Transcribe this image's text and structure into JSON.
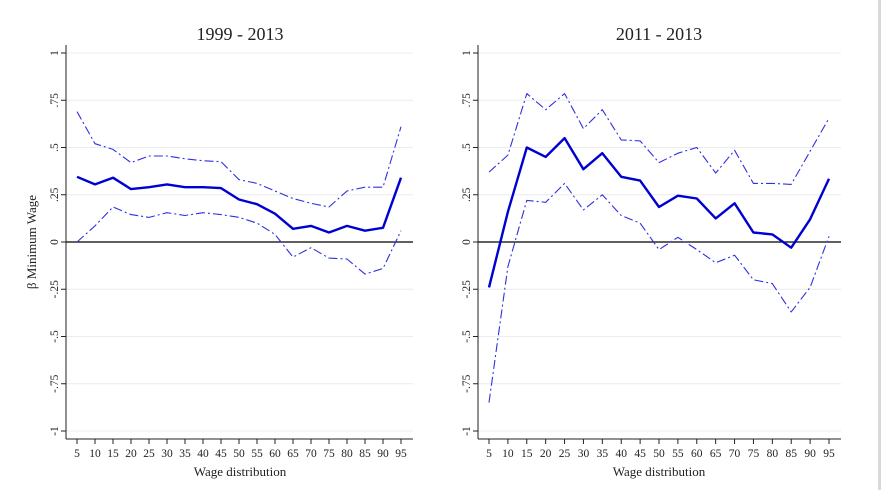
{
  "chart_data": [
    {
      "type": "line",
      "title": "1999 - 2013",
      "xlabel": "Wage distribution",
      "ylabel": "β Minimum Wage",
      "x": [
        5,
        10,
        15,
        20,
        25,
        30,
        35,
        40,
        45,
        50,
        55,
        60,
        65,
        70,
        75,
        80,
        85,
        90,
        95
      ],
      "ylim": [
        -1,
        1
      ],
      "yticks": [
        "1",
        ".75",
        ".5",
        ".25",
        "0",
        "-.25",
        "-.5",
        "-.75",
        "-1"
      ],
      "ytick_values": [
        1,
        0.75,
        0.5,
        0.25,
        0,
        -0.25,
        -0.5,
        -0.75,
        -1
      ],
      "grid": true,
      "zero_line": true,
      "series": [
        {
          "role": "estimate",
          "style": "solid",
          "color": "#0000d0",
          "values": [
            0.345,
            0.305,
            0.34,
            0.28,
            0.29,
            0.305,
            0.29,
            0.29,
            0.285,
            0.225,
            0.2,
            0.15,
            0.07,
            0.085,
            0.05,
            0.085,
            0.06,
            0.075,
            0.34
          ]
        },
        {
          "role": "upper",
          "style": "dash-dot",
          "color": "#3030e0",
          "values": [
            0.69,
            0.52,
            0.49,
            0.42,
            0.455,
            0.455,
            0.44,
            0.43,
            0.425,
            0.33,
            0.31,
            0.27,
            0.23,
            0.205,
            0.185,
            0.27,
            0.29,
            0.29,
            0.61
          ]
        },
        {
          "role": "lower",
          "style": "dash-dot",
          "color": "#3030e0",
          "values": [
            0.0,
            0.085,
            0.185,
            0.145,
            0.13,
            0.155,
            0.14,
            0.155,
            0.145,
            0.13,
            0.1,
            0.04,
            -0.08,
            -0.03,
            -0.085,
            -0.09,
            -0.17,
            -0.14,
            0.06
          ]
        }
      ]
    },
    {
      "type": "line",
      "title": "2011 - 2013",
      "xlabel": "Wage distribution",
      "ylabel": "",
      "x": [
        5,
        10,
        15,
        20,
        25,
        30,
        35,
        40,
        45,
        50,
        55,
        60,
        65,
        70,
        75,
        80,
        85,
        90,
        95
      ],
      "ylim": [
        -1,
        1
      ],
      "yticks": [
        "1",
        ".75",
        ".5",
        ".25",
        "0",
        "-.25",
        "-.5",
        "-.75",
        "-1"
      ],
      "ytick_values": [
        1,
        0.75,
        0.5,
        0.25,
        0,
        -0.25,
        -0.5,
        -0.75,
        -1
      ],
      "grid": true,
      "zero_line": true,
      "series": [
        {
          "role": "estimate",
          "style": "solid",
          "color": "#0000d0",
          "values": [
            -0.24,
            0.16,
            0.5,
            0.45,
            0.55,
            0.385,
            0.47,
            0.345,
            0.325,
            0.185,
            0.245,
            0.23,
            0.125,
            0.205,
            0.05,
            0.04,
            -0.03,
            0.12,
            0.335
          ]
        },
        {
          "role": "upper",
          "style": "dash-dot",
          "color": "#3030e0",
          "values": [
            0.37,
            0.46,
            0.785,
            0.7,
            0.785,
            0.6,
            0.7,
            0.54,
            0.535,
            0.42,
            0.47,
            0.5,
            0.365,
            0.485,
            0.31,
            0.31,
            0.305,
            0.48,
            0.655
          ]
        },
        {
          "role": "lower",
          "style": "dash-dot",
          "color": "#3030e0",
          "values": [
            -0.85,
            -0.13,
            0.22,
            0.21,
            0.31,
            0.17,
            0.25,
            0.14,
            0.1,
            -0.04,
            0.025,
            -0.04,
            -0.11,
            -0.07,
            -0.2,
            -0.22,
            -0.37,
            -0.24,
            0.03
          ]
        }
      ]
    }
  ]
}
